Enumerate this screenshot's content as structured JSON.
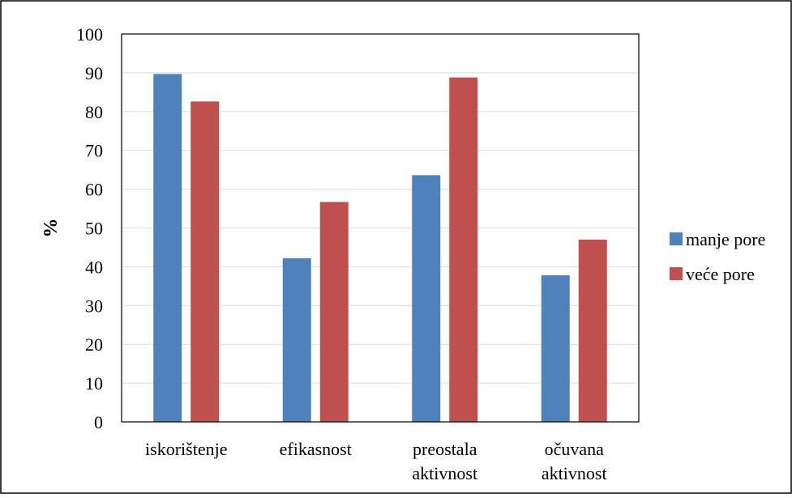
{
  "chart_data": {
    "type": "bar",
    "title": "",
    "xlabel": "",
    "ylabel": "%",
    "ylim": [
      0,
      100
    ],
    "yticks": [
      0,
      10,
      20,
      30,
      40,
      50,
      60,
      70,
      80,
      90,
      100
    ],
    "grid": true,
    "legend_position": "right",
    "categories": [
      [
        "iskorištenje"
      ],
      [
        "efikasnost"
      ],
      [
        "preostala",
        "aktivnost"
      ],
      [
        "očuvana",
        "aktivnost"
      ]
    ],
    "series": [
      {
        "name": "manje pore",
        "color": "#4f81bd",
        "values": [
          89.7,
          42.2,
          63.6,
          37.8
        ]
      },
      {
        "name": "veće pore",
        "color": "#c0504d",
        "values": [
          82.6,
          56.7,
          88.8,
          47.0
        ]
      }
    ]
  }
}
